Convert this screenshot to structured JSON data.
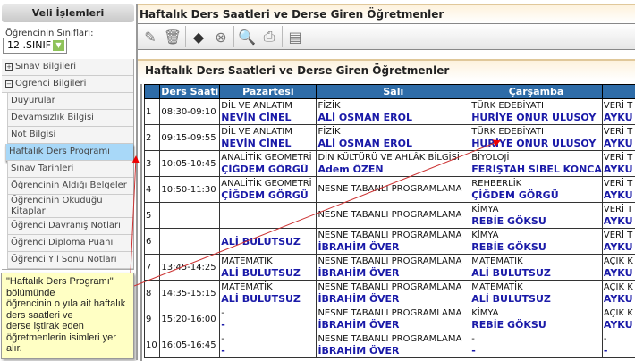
{
  "sidebar": {
    "title": "Veli İşlemleri",
    "class_label": "Öğrencinin Sınıfları:",
    "class_value": "12 .SINIF",
    "groups": [
      {
        "label": "Sınav Bilgileri",
        "icon": "plus"
      },
      {
        "label": "Ogrenci Bilgileri",
        "icon": "minus"
      }
    ],
    "items": [
      "Duyurular",
      "Devamsızlık Bilgisi",
      "Not Bilgisi",
      "Haftalık Ders Programı",
      "Sınav Tarihleri",
      "Öğrencinin Aldığı Belgeler",
      "Öğrencinin Okuduğu Kitaplar",
      "Öğrenci Davranış Notları",
      "Öğrenci Diploma Puanı",
      "Öğrenci Yıl Sonu Notları"
    ],
    "active_item": "Haftalık Ders Programı"
  },
  "main": {
    "title": "Haftalık Ders Saatleri ve Derse Giren Öğretmenler",
    "toolbar": [
      "edit-icon",
      "delete-icon",
      "save-icon",
      "cancel-icon",
      "search-icon",
      "print-icon",
      "export-icon"
    ],
    "section_title": "Haftalık Ders Saatleri ve Derse Giren Öğretmenler"
  },
  "table": {
    "header_color": "#2e6ca8",
    "teacher_color": "#1a1aa8",
    "columns": [
      "",
      "Ders Saati",
      "Pazartesi",
      "Salı",
      "Çarşamba",
      ""
    ],
    "rows": [
      [
        "1",
        "08:30-09:10",
        [
          "DİL VE ANLATIM",
          "NEVİN CİNEL"
        ],
        [
          "FİZİK",
          "ALİ OSMAN EROL"
        ],
        [
          "TÜRK EDEBİYATI",
          "HURİYE ONUR ULUSOY"
        ],
        [
          "VERİ T",
          "AYKU"
        ]
      ],
      [
        "2",
        "09:15-09:55",
        [
          "DİL VE ANLATIM",
          "NEVİN CİNEL"
        ],
        [
          "FİZİK",
          "ALİ OSMAN EROL"
        ],
        [
          "TÜRK EDEBİYATI",
          "HURİYE ONUR ULUSOY"
        ],
        [
          "VERİ T",
          "AYKU"
        ]
      ],
      [
        "3",
        "10:05-10:45",
        [
          "ANALİTİK GEOMETRİ",
          "ÇİĞDEM GÖRGÜ"
        ],
        [
          "DİN KÜLTÜRÜ VE AHLÂK BİLGİSİ",
          "Adem ÖZEN"
        ],
        [
          "BİYOLOJİ",
          "FERİŞTAH SİBEL KONCA"
        ],
        [
          "VERİ T",
          "AYKU"
        ]
      ],
      [
        "4",
        "10:50-11:30",
        [
          "ANALİTİK GEOMETRİ",
          "ÇİĞDEM GÖRGÜ"
        ],
        [
          "NESNE TABANLI PROGRAMLAMA",
          ""
        ],
        [
          "REHBERLİK",
          "ÇİĞDEM GÖRGÜ"
        ],
        [
          "VERİ T",
          "AYKU"
        ]
      ],
      [
        "5",
        "",
        [
          "",
          ""
        ],
        [
          "NESNE TABANLI PROGRAMLAMA",
          ""
        ],
        [
          "KİMYA",
          "REBİE GÖKSU"
        ],
        [
          "VERİ T",
          "AYKU"
        ]
      ],
      [
        "6",
        "",
        [
          "",
          "ALİ BULUTSUZ"
        ],
        [
          "NESNE TABANLI PROGRAMLAMA",
          "İBRAHİM ÖVER"
        ],
        [
          "KİMYA",
          "REBİE GÖKSU"
        ],
        [
          "VERİ T",
          "AYKU"
        ]
      ],
      [
        "7",
        "13:45-14:25",
        [
          "MATEMATİK",
          "ALİ BULUTSUZ"
        ],
        [
          "NESNE TABANLI PROGRAMLAMA",
          "İBRAHİM ÖVER"
        ],
        [
          "MATEMATİK",
          "ALİ BULUTSUZ"
        ],
        [
          "AÇIK K",
          "AYKU"
        ]
      ],
      [
        "8",
        "14:35-15:15",
        [
          "MATEMATİK",
          "ALİ BULUTSUZ"
        ],
        [
          "NESNE TABANLI PROGRAMLAMA",
          "İBRAHİM ÖVER"
        ],
        [
          "MATEMATİK",
          "ALİ BULUTSUZ"
        ],
        [
          "AÇIK K",
          "AYKU"
        ]
      ],
      [
        "9",
        "15:20-16:00",
        [
          "-",
          "-"
        ],
        [
          "NESNE TABANLI PROGRAMLAMA",
          "İBRAHİM ÖVER"
        ],
        [
          "KİMYA",
          "REBİE GÖKSU"
        ],
        [
          "AÇIK K",
          "AYKU"
        ]
      ],
      [
        "10",
        "16:05-16:45",
        [
          "-",
          "-"
        ],
        [
          "NESNE TABANLI PROGRAMLAMA",
          "İBRAHİM ÖVER"
        ],
        [
          "-",
          "-"
        ],
        [
          "-",
          "-"
        ]
      ]
    ]
  },
  "tooltip": {
    "lines": [
      "\"Haftalık Ders Programı\" bölümünde",
      "öğrencinin o yıla ait haftalık ders saatleri ve",
      "derse iştirak eden öğretmenlerin isimleri yer alır."
    ]
  }
}
